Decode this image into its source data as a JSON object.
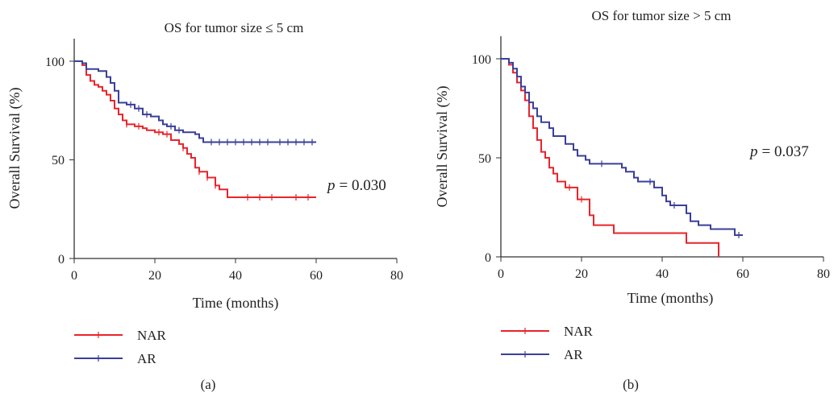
{
  "colors": {
    "NAR": "#e8242b",
    "AR": "#3a3f9a",
    "axis": "#333333"
  },
  "captions": [
    "(a)",
    "(b)"
  ],
  "chart_data": [
    {
      "type": "line",
      "title": "OS for tumor size ≤ 5 cm",
      "xlabel": "Time (months)",
      "ylabel": "Overall Survival (%)",
      "xlim": [
        0,
        80
      ],
      "ylim": [
        0,
        100
      ],
      "xticks": [
        "0",
        "20",
        "40",
        "60",
        "80"
      ],
      "yticks": [
        "0",
        "50",
        "100"
      ],
      "p_value_text": "= 0.030",
      "p_symbol": "p",
      "legend": {
        "position": "bottom-left",
        "entries": [
          "NAR",
          "AR"
        ]
      },
      "series": [
        {
          "name": "NAR",
          "points": [
            [
              0,
              100
            ],
            [
              2,
              98
            ],
            [
              3,
              93
            ],
            [
              4,
              90
            ],
            [
              5,
              88
            ],
            [
              6,
              87
            ],
            [
              7,
              85
            ],
            [
              8,
              83
            ],
            [
              9,
              80
            ],
            [
              10,
              76
            ],
            [
              11,
              73
            ],
            [
              12,
              70
            ],
            [
              13,
              68
            ],
            [
              14,
              68
            ],
            [
              15,
              67
            ],
            [
              17,
              66
            ],
            [
              18,
              65
            ],
            [
              20,
              64
            ],
            [
              22,
              63
            ],
            [
              24,
              60
            ],
            [
              26,
              58
            ],
            [
              27,
              56
            ],
            [
              28,
              53
            ],
            [
              29,
              51
            ],
            [
              30,
              46
            ],
            [
              31,
              44
            ],
            [
              33,
              41
            ],
            [
              35,
              37
            ],
            [
              36,
              35
            ],
            [
              38,
              31
            ],
            [
              40,
              31
            ],
            [
              60,
              31
            ]
          ],
          "censor_x": [
            13,
            16,
            21,
            23,
            27,
            31,
            33,
            35,
            43,
            46,
            49,
            55,
            58
          ]
        },
        {
          "name": "AR",
          "points": [
            [
              0,
              100
            ],
            [
              2,
              99
            ],
            [
              3,
              96
            ],
            [
              6,
              95
            ],
            [
              8,
              92
            ],
            [
              9,
              89
            ],
            [
              10,
              85
            ],
            [
              11,
              79
            ],
            [
              13,
              78
            ],
            [
              15,
              76
            ],
            [
              17,
              73
            ],
            [
              19,
              72
            ],
            [
              21,
              70
            ],
            [
              22,
              68
            ],
            [
              23,
              67
            ],
            [
              25,
              65
            ],
            [
              27,
              64
            ],
            [
              30,
              63
            ],
            [
              31,
              61
            ],
            [
              32,
              59
            ],
            [
              33,
              59
            ],
            [
              60,
              59
            ]
          ],
          "censor_x": [
            14,
            16,
            18,
            24,
            26,
            34,
            36,
            38,
            40,
            42,
            44,
            46,
            48,
            51,
            53,
            55,
            57,
            59
          ]
        }
      ]
    },
    {
      "type": "line",
      "title": "OS for tumor size > 5 cm",
      "xlabel": "Time (months)",
      "ylabel": "Overall Survival (%)",
      "xlim": [
        0,
        80
      ],
      "ylim": [
        0,
        100
      ],
      "xticks": [
        "0",
        "20",
        "40",
        "60",
        "80"
      ],
      "yticks": [
        "0",
        "50",
        "100"
      ],
      "p_value_text": "= 0.037",
      "p_symbol": "p",
      "legend": {
        "position": "bottom-left",
        "entries": [
          "NAR",
          "AR"
        ]
      },
      "series": [
        {
          "name": "NAR",
          "points": [
            [
              0,
              100
            ],
            [
              2,
              97
            ],
            [
              3,
              93
            ],
            [
              4,
              88
            ],
            [
              5,
              84
            ],
            [
              6,
              79
            ],
            [
              7,
              71
            ],
            [
              8,
              65
            ],
            [
              9,
              59
            ],
            [
              10,
              53
            ],
            [
              11,
              50
            ],
            [
              12,
              45
            ],
            [
              13,
              42
            ],
            [
              14,
              38
            ],
            [
              16,
              35
            ],
            [
              18,
              35
            ],
            [
              19,
              29
            ],
            [
              21,
              29
            ],
            [
              22,
              21
            ],
            [
              23,
              16
            ],
            [
              28,
              12
            ],
            [
              46,
              7
            ],
            [
              54,
              0
            ]
          ],
          "censor_x": [
            17,
            20
          ]
        },
        {
          "name": "AR",
          "points": [
            [
              0,
              100
            ],
            [
              2,
              98
            ],
            [
              3,
              95
            ],
            [
              4,
              91
            ],
            [
              5,
              86
            ],
            [
              6,
              83
            ],
            [
              7,
              78
            ],
            [
              8,
              75
            ],
            [
              9,
              71
            ],
            [
              10,
              68
            ],
            [
              12,
              65
            ],
            [
              13,
              61
            ],
            [
              16,
              57
            ],
            [
              18,
              54
            ],
            [
              19,
              51
            ],
            [
              21,
              49
            ],
            [
              22,
              47
            ],
            [
              30,
              45
            ],
            [
              31,
              43
            ],
            [
              33,
              40
            ],
            [
              34,
              38
            ],
            [
              38,
              35
            ],
            [
              40,
              31
            ],
            [
              41,
              28
            ],
            [
              42,
              26
            ],
            [
              46,
              22
            ],
            [
              47,
              18
            ],
            [
              49,
              16
            ],
            [
              52,
              14
            ],
            [
              58,
              11
            ],
            [
              60,
              11
            ]
          ],
          "censor_x": [
            25,
            37,
            43,
            59
          ]
        }
      ]
    }
  ]
}
